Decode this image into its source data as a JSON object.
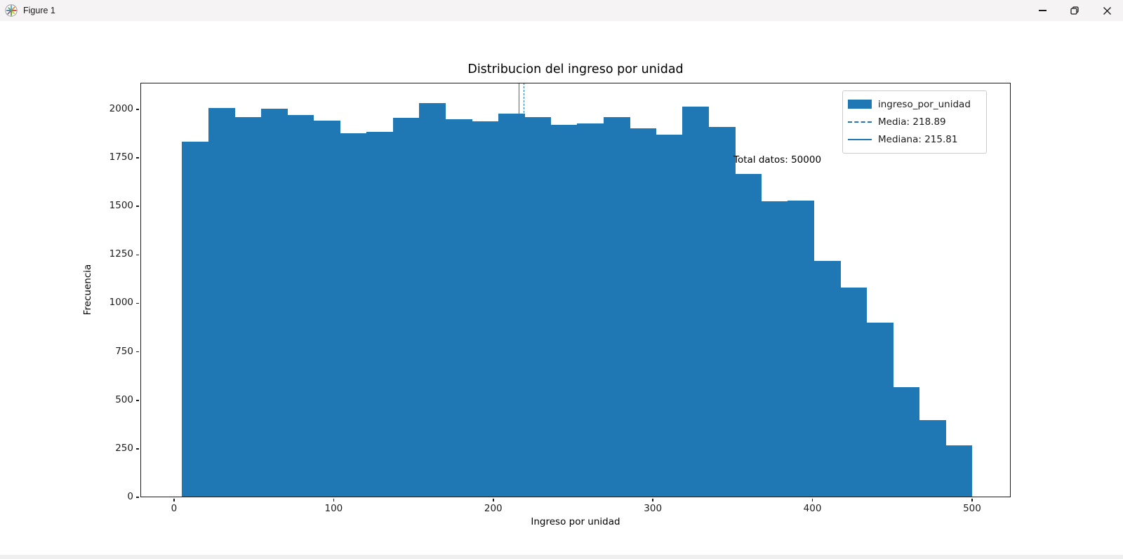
{
  "window": {
    "title": "Figure 1",
    "controls": {
      "minimize": "minimize",
      "restore": "restore",
      "close": "close"
    }
  },
  "chart_data": {
    "type": "bar",
    "subtype": "histogram",
    "title": "Distribucion del ingreso por unidad",
    "xlabel": "Ingreso por unidad",
    "ylabel": "Frecuencia",
    "bar_color": "#1f77b4",
    "bin_start": 5,
    "bin_width": 16.5,
    "values": [
      1834,
      2007,
      1960,
      2004,
      1971,
      1942,
      1877,
      1884,
      1957,
      2033,
      1950,
      1939,
      1979,
      1960,
      1921,
      1928,
      1960,
      1903,
      1870,
      2015,
      1910,
      1668,
      1526,
      1530,
      1219,
      1081,
      901,
      568,
      398,
      268
    ],
    "xticks": [
      0,
      100,
      200,
      300,
      400,
      500
    ],
    "yticks": [
      0,
      250,
      500,
      750,
      1000,
      1250,
      1500,
      1750,
      2000
    ],
    "xlim": [
      -21.1,
      524.2
    ],
    "ylim": [
      0,
      2137
    ],
    "grid": false,
    "mean_line": {
      "value": 218.89,
      "style": "dashed"
    },
    "median_line": {
      "value": 215.81,
      "style": "solid"
    },
    "annotation": "Total datos: 50000",
    "legend": {
      "position": "upper-right",
      "items": [
        {
          "label": "ingreso_por_unidad",
          "marker": "patch"
        },
        {
          "label": "Media: 218.89",
          "marker": "dashed-line"
        },
        {
          "label": "Mediana: 215.81",
          "marker": "solid-line"
        }
      ]
    }
  }
}
